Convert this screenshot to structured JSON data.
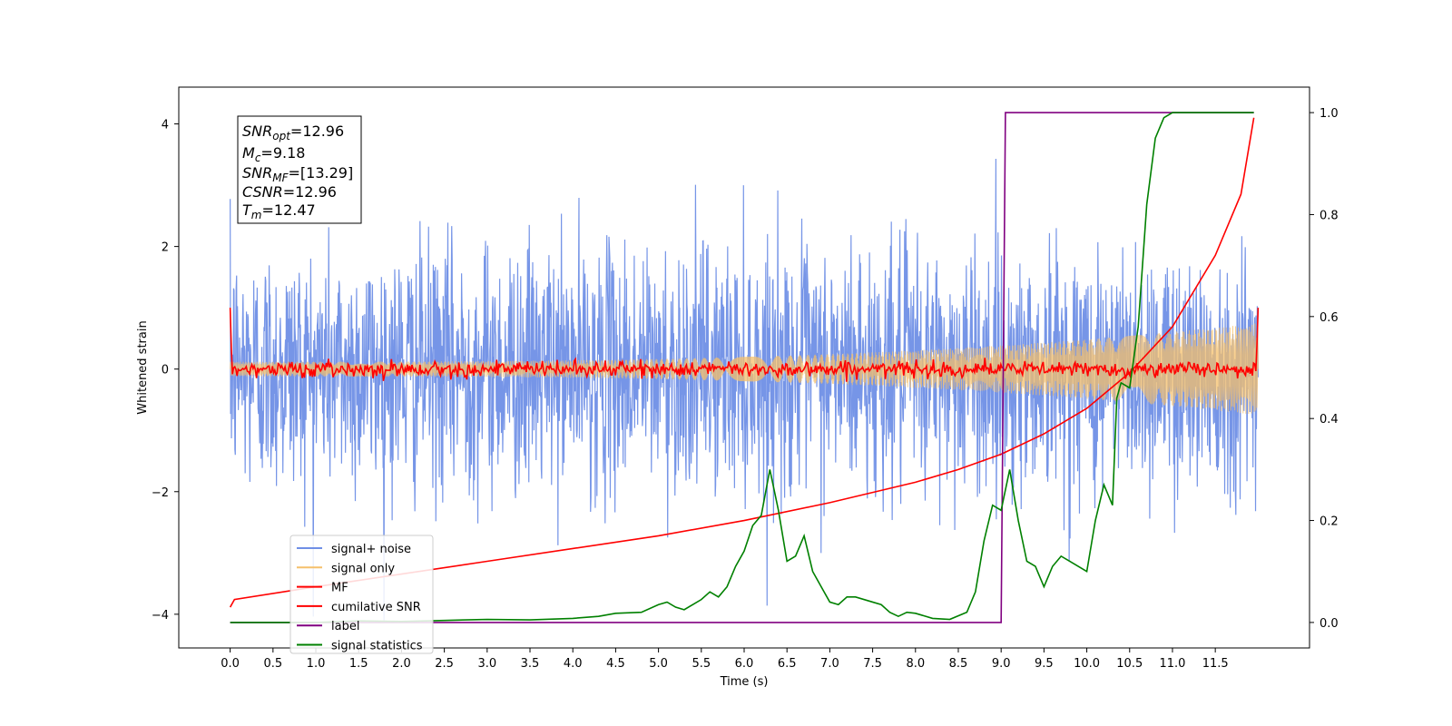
{
  "chart_data": {
    "type": "line",
    "xlabel": "Time (s)",
    "ylabel": "Whitened strain",
    "xlim": [
      -0.6,
      12.6
    ],
    "ylim": [
      -4.55,
      4.6
    ],
    "y2lim": [
      -0.05,
      1.05
    ],
    "x_ticks": [
      "0.0",
      "0.5",
      "1.0",
      "1.5",
      "2.0",
      "2.5",
      "3.0",
      "3.5",
      "4.0",
      "4.5",
      "5.0",
      "5.5",
      "6.0",
      "6.5",
      "7.0",
      "7.5",
      "8.0",
      "8.5",
      "9.0",
      "9.5",
      "10.0",
      "10.5",
      "11.0",
      "11.5"
    ],
    "y_ticks": [
      "4",
      "2",
      "0",
      "−2",
      "−4"
    ],
    "y2_ticks": [
      "1.0",
      "0.8",
      "0.6",
      "0.4",
      "0.2",
      "0.0"
    ],
    "legend_position": "lower-left",
    "info_box": {
      "snr_opt": "=12.96",
      "mc": "=9.18",
      "snr_mf": "=[13.29]",
      "csnr": "=12.96",
      "tm": "=12.47"
    },
    "series": [
      {
        "name": "signal+ noise",
        "color": "#6f8fe6",
        "axis": "left",
        "kind": "noise",
        "sigma": 1.0,
        "x_range": [
          0.0,
          12.0
        ]
      },
      {
        "name": "signal only",
        "color": "#f5c06b",
        "axis": "left",
        "kind": "chirp",
        "amplitude_start": 0.12,
        "amplitude_end": 0.75,
        "x_range": [
          0.0,
          12.0
        ]
      },
      {
        "name": "MF",
        "color": "#ff0000",
        "axis": "left",
        "kind": "mf",
        "x_range": [
          0.0,
          12.0
        ],
        "start_value": 1.0,
        "end_value": 1.0,
        "noise_sigma": 0.04
      },
      {
        "name": "cumilative SNR",
        "color": "#ff0000",
        "axis": "right",
        "x": [
          0.0,
          0.05,
          1.0,
          2.0,
          3.0,
          4.0,
          5.0,
          6.0,
          7.0,
          8.0,
          8.5,
          9.0,
          9.5,
          10.0,
          10.5,
          11.0,
          11.5,
          11.8,
          11.95
        ],
        "y": [
          0.03,
          0.045,
          0.07,
          0.095,
          0.12,
          0.145,
          0.17,
          0.2,
          0.235,
          0.275,
          0.3,
          0.33,
          0.37,
          0.42,
          0.49,
          0.58,
          0.72,
          0.84,
          0.99
        ]
      },
      {
        "name": "label",
        "color": "#800080",
        "axis": "right",
        "x": [
          0.0,
          9.0,
          9.05,
          11.95
        ],
        "y": [
          0.0,
          0.0,
          1.0,
          1.0
        ]
      },
      {
        "name": "signal statistics",
        "color": "#008000",
        "axis": "right",
        "x": [
          0.0,
          0.5,
          1.0,
          1.5,
          2.0,
          2.5,
          3.0,
          3.5,
          4.0,
          4.3,
          4.5,
          4.8,
          5.0,
          5.1,
          5.2,
          5.3,
          5.5,
          5.6,
          5.7,
          5.8,
          5.9,
          6.0,
          6.1,
          6.2,
          6.3,
          6.4,
          6.5,
          6.6,
          6.7,
          6.8,
          6.9,
          7.0,
          7.1,
          7.2,
          7.3,
          7.5,
          7.6,
          7.7,
          7.8,
          7.9,
          8.0,
          8.2,
          8.4,
          8.6,
          8.7,
          8.8,
          8.9,
          9.0,
          9.1,
          9.2,
          9.3,
          9.4,
          9.5,
          9.6,
          9.7,
          9.8,
          9.9,
          10.0,
          10.1,
          10.2,
          10.3,
          10.35,
          10.4,
          10.5,
          10.6,
          10.7,
          10.8,
          10.9,
          11.0,
          11.1,
          11.2,
          11.4,
          11.6,
          11.8,
          11.95
        ],
        "y": [
          0.0,
          0.0,
          0.0,
          0.003,
          0.002,
          0.004,
          0.006,
          0.005,
          0.008,
          0.012,
          0.018,
          0.02,
          0.035,
          0.04,
          0.03,
          0.025,
          0.045,
          0.06,
          0.05,
          0.07,
          0.11,
          0.14,
          0.19,
          0.21,
          0.3,
          0.22,
          0.12,
          0.13,
          0.17,
          0.1,
          0.07,
          0.04,
          0.035,
          0.05,
          0.05,
          0.04,
          0.035,
          0.02,
          0.012,
          0.02,
          0.018,
          0.008,
          0.006,
          0.02,
          0.06,
          0.16,
          0.23,
          0.22,
          0.3,
          0.2,
          0.12,
          0.11,
          0.07,
          0.11,
          0.13,
          0.12,
          0.11,
          0.1,
          0.2,
          0.27,
          0.23,
          0.44,
          0.47,
          0.46,
          0.58,
          0.82,
          0.95,
          0.99,
          1.0,
          1.0,
          1.0,
          1.0,
          1.0,
          1.0,
          1.0
        ]
      }
    ]
  }
}
